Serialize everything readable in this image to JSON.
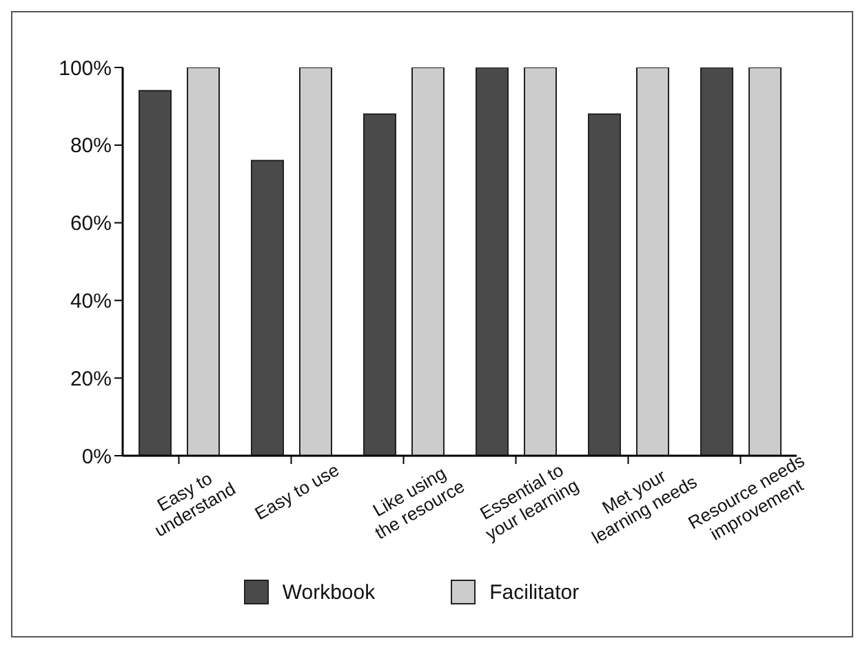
{
  "chart_data": {
    "type": "bar",
    "categories": [
      "Easy to\nunderstand",
      "Easy to use",
      "Like using\nthe resource",
      "Essential to\nyour learning",
      "Met your\nlearning needs",
      "Resource needs\nimprovement"
    ],
    "series": [
      {
        "name": "Workbook",
        "color": "#4a4a4a",
        "values": [
          94,
          76,
          88,
          100,
          88,
          100
        ]
      },
      {
        "name": "Facilitator",
        "color": "#cccccc",
        "values": [
          100,
          100,
          100,
          100,
          100,
          100
        ]
      }
    ],
    "ylim": [
      0,
      100
    ],
    "yticks": [
      {
        "value": 0,
        "label": "0%"
      },
      {
        "value": 20,
        "label": "20%"
      },
      {
        "value": 40,
        "label": "40%"
      },
      {
        "value": 60,
        "label": "60%"
      },
      {
        "value": 80,
        "label": "80%"
      },
      {
        "value": 100,
        "label": "100%"
      }
    ],
    "grid": false,
    "legend": "bottom"
  }
}
